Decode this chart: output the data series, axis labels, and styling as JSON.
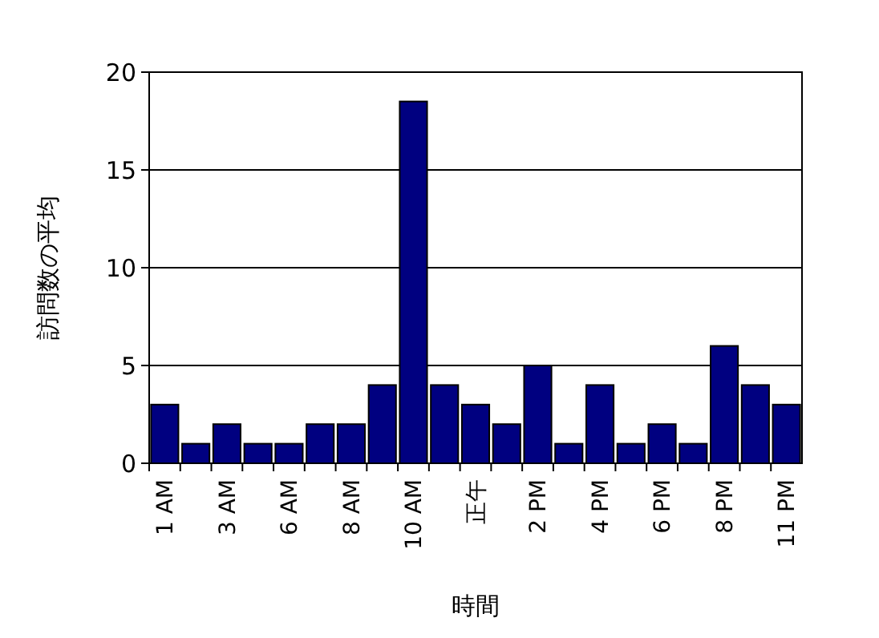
{
  "chart_data": {
    "type": "bar",
    "xlabel": "時間",
    "ylabel": "訪問数の平均",
    "categories": [
      "1 AM",
      null,
      "3 AM",
      null,
      "6 AM",
      null,
      "8 AM",
      null,
      "10 AM",
      null,
      "正午",
      null,
      "2 PM",
      null,
      "4 PM",
      null,
      "6 PM",
      null,
      "8 PM",
      null,
      "11 PM"
    ],
    "values": [
      3,
      1,
      2,
      1,
      1,
      2,
      2,
      4,
      18.5,
      4,
      3,
      2,
      5,
      1,
      4,
      1,
      2,
      1,
      6,
      4,
      3
    ],
    "color": "#000080",
    "ylim": [
      0,
      20
    ],
    "yticks": [
      0,
      5,
      10,
      15,
      20
    ],
    "grid": "y"
  }
}
